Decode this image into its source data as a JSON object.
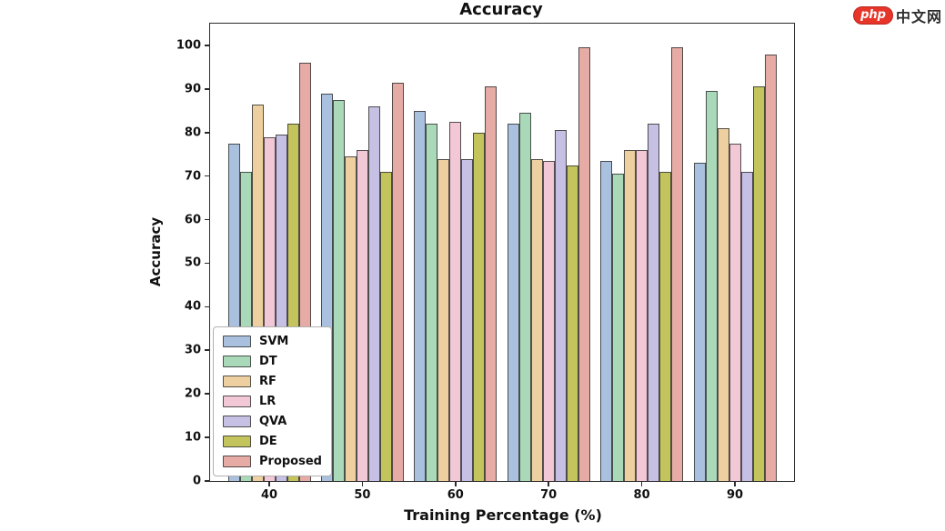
{
  "logo": {
    "badge": "php",
    "text": "中文网",
    "badge_color": "#e8352a",
    "text_color": "#2d2d2d"
  },
  "chart_data": {
    "type": "bar",
    "title": "Accuracy",
    "xlabel": "Training Percentage (%)",
    "ylabel": "Accuracy",
    "categories": [
      "40",
      "50",
      "60",
      "70",
      "80",
      "90"
    ],
    "yticks": [
      0,
      10,
      20,
      30,
      40,
      50,
      60,
      70,
      80,
      90,
      100
    ],
    "ylim": [
      0,
      105
    ],
    "grid": false,
    "legend_position": "lower-left",
    "bar_edge_color": "#373737",
    "series": [
      {
        "name": "SVM",
        "color": "#a9c1de",
        "values": [
          77.5,
          89,
          85,
          82,
          73.5,
          73
        ]
      },
      {
        "name": "DT",
        "color": "#a9d9b8",
        "values": [
          71,
          87.5,
          82,
          84.5,
          70.5,
          89.5
        ]
      },
      {
        "name": "RF",
        "color": "#eed0a0",
        "values": [
          86.5,
          74.5,
          74,
          74,
          76,
          81
        ]
      },
      {
        "name": "LR",
        "color": "#f2c7d6",
        "values": [
          79,
          76,
          82.5,
          73.5,
          76,
          77.5
        ]
      },
      {
        "name": "QVA",
        "color": "#c5c0e4",
        "values": [
          79.5,
          86,
          74,
          80.5,
          82,
          71
        ]
      },
      {
        "name": "DE",
        "color": "#c3c45c",
        "values": [
          82,
          71,
          80,
          72.5,
          71,
          90.5
        ]
      },
      {
        "name": "Proposed",
        "color": "#e6aba5",
        "values": [
          96,
          91.5,
          90.5,
          99.5,
          99.5,
          98
        ]
      }
    ]
  }
}
